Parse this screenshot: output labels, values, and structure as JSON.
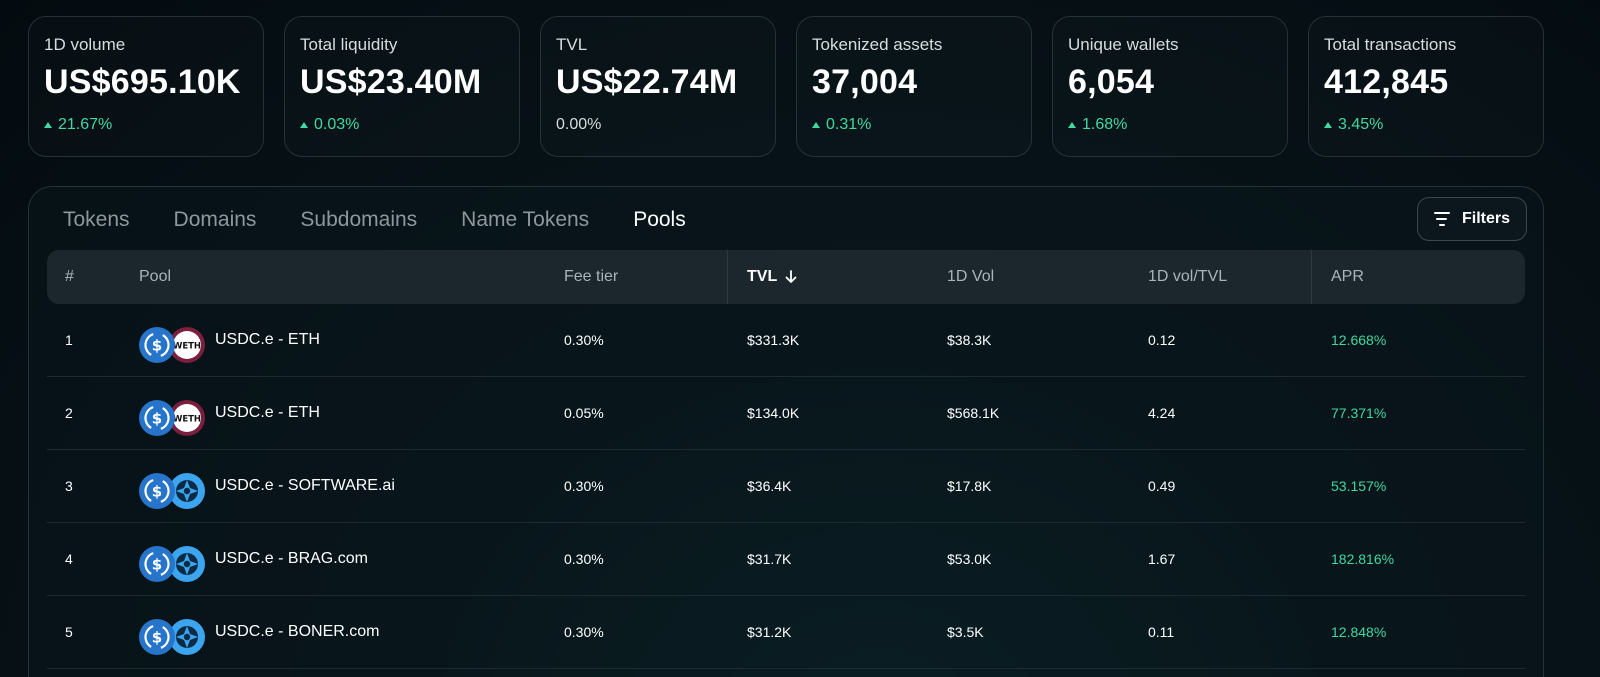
{
  "stats": [
    {
      "label": "1D volume",
      "value": "US$695.10K",
      "change": "21.67%",
      "trend": "up"
    },
    {
      "label": "Total liquidity",
      "value": "US$23.40M",
      "change": "0.03%",
      "trend": "up"
    },
    {
      "label": "TVL",
      "value": "US$22.74M",
      "change": "0.00%",
      "trend": "neutral"
    },
    {
      "label": "Tokenized assets",
      "value": "37,004",
      "change": "0.31%",
      "trend": "up"
    },
    {
      "label": "Unique wallets",
      "value": "6,054",
      "change": "1.68%",
      "trend": "up"
    },
    {
      "label": "Total transactions",
      "value": "412,845",
      "change": "3.45%",
      "trend": "up"
    }
  ],
  "tabs": [
    "Tokens",
    "Domains",
    "Subdomains",
    "Name Tokens",
    "Pools"
  ],
  "active_tab": "Pools",
  "filters_label": "Filters",
  "table": {
    "headers": {
      "rank": "#",
      "pool": "Pool",
      "fee": "Fee tier",
      "tvl": "TVL",
      "vol": "1D Vol",
      "ratio": "1D vol/TVL",
      "apr": "APR"
    },
    "sorted_column": "TVL",
    "rows": [
      {
        "rank": "1",
        "pool": "USDC.e - ETH",
        "token2_icon": "weth-icon",
        "fee": "0.30%",
        "tvl": "$331.3K",
        "vol": "$38.3K",
        "ratio": "0.12",
        "apr": "12.668%"
      },
      {
        "rank": "2",
        "pool": "USDC.e - ETH",
        "token2_icon": "weth-icon",
        "fee": "0.05%",
        "tvl": "$134.0K",
        "vol": "$568.1K",
        "ratio": "4.24",
        "apr": "77.371%"
      },
      {
        "rank": "3",
        "pool": "USDC.e - SOFTWARE.ai",
        "token2_icon": "domain-token-icon",
        "fee": "0.30%",
        "tvl": "$36.4K",
        "vol": "$17.8K",
        "ratio": "0.49",
        "apr": "53.157%"
      },
      {
        "rank": "4",
        "pool": "USDC.e - BRAG.com",
        "token2_icon": "domain-token-icon",
        "fee": "0.30%",
        "tvl": "$31.7K",
        "vol": "$53.0K",
        "ratio": "1.67",
        "apr": "182.816%"
      },
      {
        "rank": "5",
        "pool": "USDC.e - BONER.com",
        "token2_icon": "domain-token-icon",
        "fee": "0.30%",
        "tvl": "$31.2K",
        "vol": "$3.5K",
        "ratio": "0.11",
        "apr": "12.848%"
      }
    ]
  },
  "colors": {
    "accent_green": "#3fd9a0",
    "usdc_blue": "#2775ca",
    "weth_red": "#7a1f3d",
    "domain_blue": "#3ba5f0"
  },
  "icons": {
    "usdc": "usdc-icon",
    "weth": "weth-icon",
    "weth_text": "WETH",
    "domain": "domain-token-icon",
    "sort": "sort-down-arrow-icon",
    "filter": "filter-icon"
  }
}
